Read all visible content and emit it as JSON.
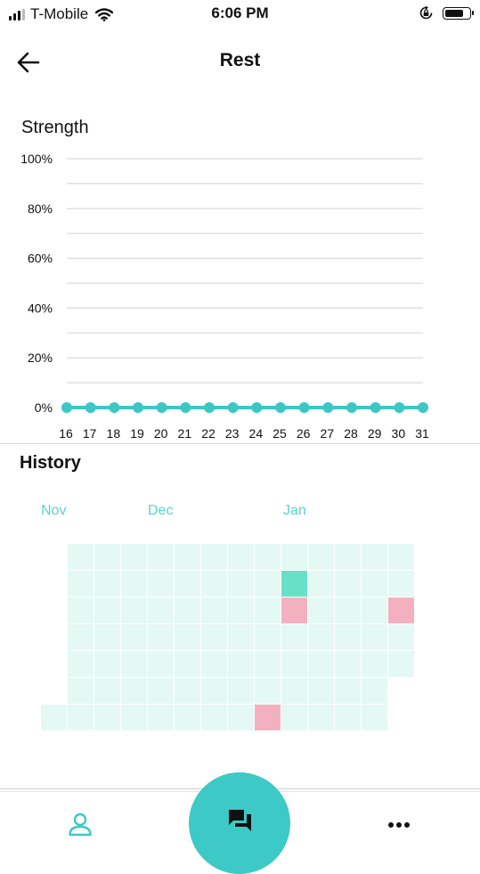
{
  "status_bar": {
    "carrier": "T-Mobile",
    "time": "6:06 PM",
    "icons": [
      "signal-icon",
      "wifi-icon",
      "rotation-lock-icon",
      "battery-icon"
    ],
    "battery_level": 0.8
  },
  "header": {
    "title": "Rest",
    "back_icon": "arrow-left-icon"
  },
  "strength": {
    "title": "Strength"
  },
  "history": {
    "title": "History",
    "months": [
      "Nov",
      "Dec",
      "Jan"
    ],
    "grid": {
      "columns": 14,
      "rows": 7,
      "marked": [
        {
          "col": 9,
          "row": 1,
          "color": "#66e1c7"
        },
        {
          "col": 9,
          "row": 2,
          "color": "#f3b1bf"
        },
        {
          "col": 13,
          "row": 2,
          "color": "#f3b1bf"
        },
        {
          "col": 8,
          "row": 6,
          "color": "#f3b1bf"
        }
      ],
      "empty_color": "#e4f9f4"
    }
  },
  "colors": {
    "accent": "#3dc9c6",
    "line": "#3cc7c6",
    "month_text": "#5bd3c7"
  },
  "bottom_nav": {
    "icons": [
      "profile-icon",
      "chat-icon",
      "more-icon"
    ]
  },
  "chart_data": {
    "type": "line",
    "title": "Strength",
    "xlabel": "",
    "ylabel": "",
    "x": [
      16,
      17,
      18,
      19,
      20,
      21,
      22,
      23,
      24,
      25,
      26,
      27,
      28,
      29,
      30,
      31
    ],
    "series": [
      {
        "values": [
          0,
          0,
          0,
          0,
          0,
          0,
          0,
          0,
          0,
          0,
          0,
          0,
          0,
          0,
          0,
          0
        ]
      }
    ],
    "y_ticks": [
      "100%",
      "80%",
      "60%",
      "40%",
      "20%",
      "0%"
    ],
    "ylim": [
      0,
      100
    ],
    "grid": true,
    "legend": "none"
  }
}
